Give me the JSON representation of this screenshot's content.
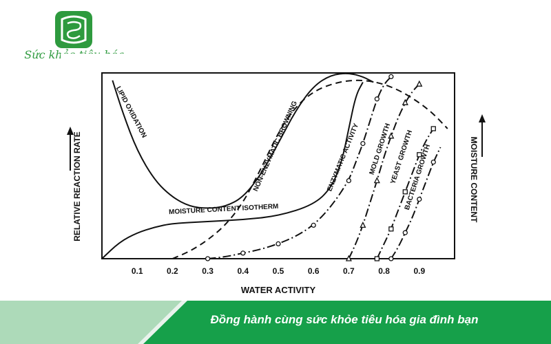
{
  "logo": {
    "text": "Sức khỏe tiêu hóa",
    "icon": "intestine-icon",
    "color": "#2e9a3e"
  },
  "banner": {
    "slogan": "Đồng hành cùng sức khỏe tiêu hóa gia đình bạn",
    "color": "#16a04a"
  },
  "chart_data": {
    "type": "line",
    "title": "",
    "xlabel": "WATER ACTIVITY",
    "ylabel_left": "RELATIVE REACTION RATE",
    "ylabel_right": "MOISTURE CONTENT",
    "xlim": [
      0,
      1.0
    ],
    "ylim": [
      0,
      100
    ],
    "xticks": [
      "0.1",
      "0.2",
      "0.3",
      "0.4",
      "0.5",
      "0.6",
      "0.7",
      "0.8",
      "0.9"
    ],
    "grid": false,
    "series": [
      {
        "name": "LIPID OXIDATION",
        "style": "solid",
        "marker": "none",
        "points": [
          [
            0.03,
            96
          ],
          [
            0.06,
            78
          ],
          [
            0.1,
            58
          ],
          [
            0.15,
            42
          ],
          [
            0.2,
            33
          ],
          [
            0.25,
            28
          ],
          [
            0.3,
            27
          ],
          [
            0.35,
            28
          ],
          [
            0.4,
            33
          ],
          [
            0.45,
            45
          ],
          [
            0.5,
            62
          ],
          [
            0.55,
            80
          ],
          [
            0.6,
            93
          ],
          [
            0.65,
            99
          ],
          [
            0.7,
            100
          ],
          [
            0.74,
            98
          ],
          [
            0.77,
            95
          ]
        ]
      },
      {
        "name": "NON-ENZYMATIC BROWNING",
        "style": "dashed",
        "marker": "none",
        "points": [
          [
            0.2,
            0
          ],
          [
            0.25,
            4
          ],
          [
            0.3,
            10
          ],
          [
            0.35,
            18
          ],
          [
            0.4,
            30
          ],
          [
            0.45,
            48
          ],
          [
            0.5,
            68
          ],
          [
            0.55,
            82
          ],
          [
            0.6,
            90
          ],
          [
            0.65,
            94
          ],
          [
            0.7,
            96
          ],
          [
            0.75,
            96
          ],
          [
            0.8,
            94
          ],
          [
            0.85,
            90
          ],
          [
            0.9,
            84
          ],
          [
            0.94,
            78
          ],
          [
            0.98,
            70
          ]
        ]
      },
      {
        "name": "MOISTURE CONTENT ISOTHERM",
        "style": "solid",
        "marker": "none",
        "points": [
          [
            0,
            0
          ],
          [
            0.05,
            9
          ],
          [
            0.1,
            14
          ],
          [
            0.15,
            17
          ],
          [
            0.2,
            19
          ],
          [
            0.3,
            20
          ],
          [
            0.4,
            21
          ],
          [
            0.5,
            23
          ],
          [
            0.6,
            29
          ],
          [
            0.65,
            38
          ],
          [
            0.68,
            52
          ],
          [
            0.7,
            70
          ],
          [
            0.72,
            88
          ],
          [
            0.74,
            95
          ]
        ]
      },
      {
        "name": "ENZYMATIC ACTIVITY",
        "style": "dash-dot",
        "marker": "circle",
        "points": [
          [
            0.3,
            0
          ],
          [
            0.35,
            1
          ],
          [
            0.4,
            3
          ],
          [
            0.45,
            5
          ],
          [
            0.5,
            8
          ],
          [
            0.55,
            12
          ],
          [
            0.6,
            18
          ],
          [
            0.65,
            28
          ],
          [
            0.7,
            42
          ],
          [
            0.72,
            52
          ],
          [
            0.74,
            62
          ],
          [
            0.76,
            74
          ],
          [
            0.78,
            86
          ],
          [
            0.8,
            94
          ],
          [
            0.82,
            98
          ]
        ]
      },
      {
        "name": "MOLD GROWTH",
        "style": "dash-dot",
        "marker": "triangle",
        "points": [
          [
            0.7,
            0
          ],
          [
            0.72,
            8
          ],
          [
            0.74,
            18
          ],
          [
            0.76,
            30
          ],
          [
            0.78,
            42
          ],
          [
            0.8,
            55
          ],
          [
            0.82,
            66
          ],
          [
            0.84,
            76
          ],
          [
            0.86,
            84
          ],
          [
            0.88,
            90
          ],
          [
            0.9,
            94
          ]
        ]
      },
      {
        "name": "YEAST GROWTH",
        "style": "dash-dot",
        "marker": "square",
        "points": [
          [
            0.78,
            0
          ],
          [
            0.8,
            8
          ],
          [
            0.82,
            16
          ],
          [
            0.84,
            26
          ],
          [
            0.86,
            36
          ],
          [
            0.88,
            46
          ],
          [
            0.9,
            56
          ],
          [
            0.92,
            64
          ],
          [
            0.94,
            70
          ]
        ]
      },
      {
        "name": "BACTERIA GROWTH",
        "style": "dash-dot",
        "marker": "circle",
        "points": [
          [
            0.82,
            0
          ],
          [
            0.84,
            6
          ],
          [
            0.86,
            14
          ],
          [
            0.88,
            22
          ],
          [
            0.9,
            32
          ],
          [
            0.92,
            42
          ],
          [
            0.94,
            52
          ],
          [
            0.96,
            60
          ]
        ]
      }
    ]
  }
}
